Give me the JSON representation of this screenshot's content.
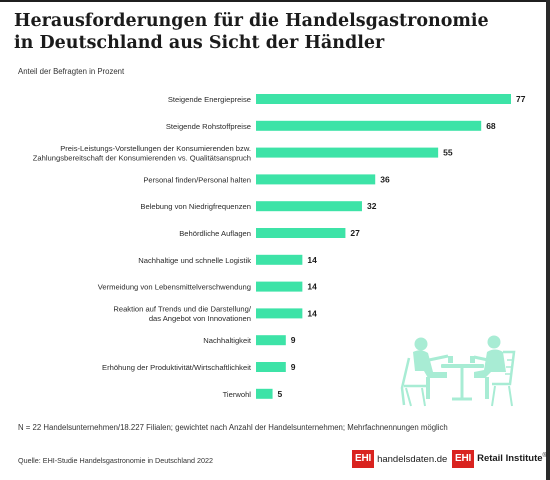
{
  "title": "Herausforderungen für die Handelsgastronomie in Deutschland aus Sicht der Händler",
  "subtitle": "Anteil der Befragten in Prozent",
  "footnote": "N = 22 Handelsunternehmen/18.227 Filialen; gewichtet nach Anzahl der Handelsunternehmen; Mehrfachnennungen möglich",
  "source": "Quelle: EHI-Studie Handelsgastronomie in Deutschland 2022",
  "logos": {
    "ehi1_box": "EHI",
    "ehi1_text": "handelsdaten.de",
    "ehi2_box": "EHI",
    "ehi2_text": "Retail Institute",
    "ehi2_mark": "®"
  },
  "colors": {
    "bar": "#3de3a7",
    "illustration": "#a8ecd4"
  },
  "illustration": "cafe-table-two-people-icon",
  "chart_data": {
    "type": "bar",
    "orientation": "horizontal",
    "categories": [
      "Steigende Energiepreise",
      "Steigende Rohstoffpreise",
      "Preis-Leistungs-Vorstellungen der Konsumierenden bzw.\nZahlungsbereitschaft der Konsumierenden vs. Qualitätsanspruch",
      "Personal finden/Personal halten",
      "Belebung von Niedrigfrequenzen",
      "Behördliche Auflagen",
      "Nachhaltige und schnelle Logistik",
      "Vermeidung von Lebensmittelverschwendung",
      "Reaktion auf Trends und die Darstellung/\ndas Angebot von Innovationen",
      "Nachhaltigkeit",
      "Erhöhung der Produktivität/Wirtschaftlichkeit",
      "Tierwohl"
    ],
    "values": [
      77,
      68,
      55,
      36,
      32,
      27,
      14,
      14,
      14,
      9,
      9,
      5
    ],
    "xlim": [
      0,
      77
    ],
    "grid": false,
    "legend": "none"
  }
}
